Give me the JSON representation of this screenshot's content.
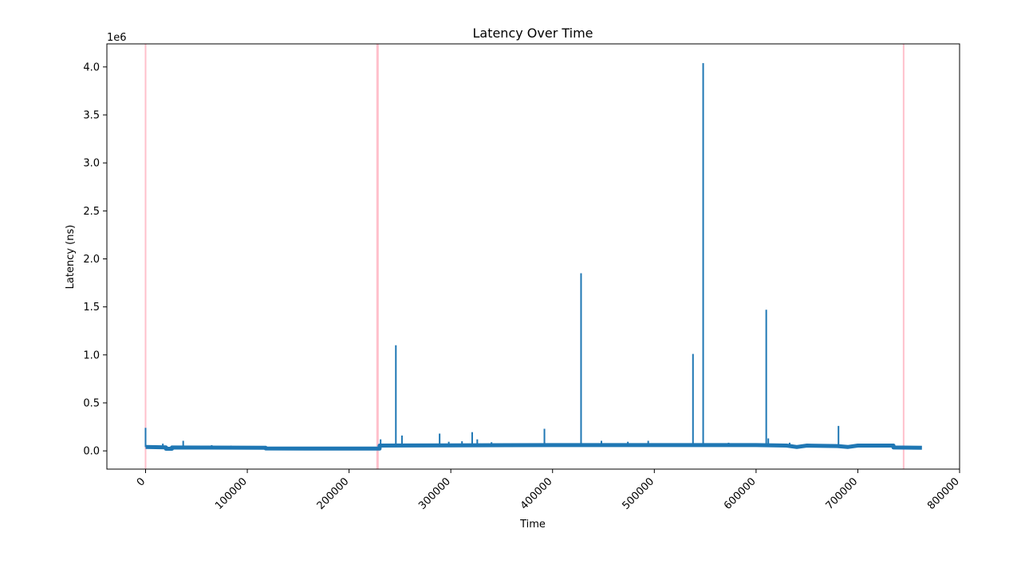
{
  "chart_data": {
    "type": "line",
    "title": "Latency Over Time",
    "xlabel": "Time",
    "ylabel": "Latency (ns)",
    "y_offset_label": "1e6",
    "xlim": [
      -38000,
      800000
    ],
    "ylim": [
      -190000,
      4240000
    ],
    "x_ticks": [
      0,
      100000,
      200000,
      300000,
      400000,
      500000,
      600000,
      700000,
      800000
    ],
    "x_tick_labels": [
      "0",
      "100000",
      "200000",
      "300000",
      "400000",
      "500000",
      "600000",
      "700000",
      "800000"
    ],
    "y_ticks": [
      0,
      500000,
      1000000,
      1500000,
      2000000,
      2500000,
      3000000,
      3500000,
      4000000
    ],
    "y_tick_labels": [
      "0.0",
      "0.5",
      "1.0",
      "1.5",
      "2.0",
      "2.5",
      "3.0",
      "3.5",
      "4.0"
    ],
    "x_tick_rotation": 45,
    "grid": false,
    "legend": "none",
    "colors": {
      "series": "#1f77b4",
      "markers": "#ffc0cb"
    },
    "vertical_markers": [
      0,
      228000,
      745000
    ],
    "series": [
      {
        "baseline": [
          [
            0,
            40000
          ],
          [
            20000,
            36000
          ],
          [
            20000,
            22000
          ],
          [
            26000,
            22000
          ],
          [
            26000,
            35000
          ],
          [
            60000,
            34000
          ],
          [
            118000,
            32000
          ],
          [
            118000,
            25000
          ],
          [
            200000,
            24000
          ],
          [
            230000,
            24000
          ],
          [
            230000,
            55000
          ],
          [
            300000,
            58000
          ],
          [
            400000,
            60000
          ],
          [
            500000,
            60000
          ],
          [
            600000,
            60000
          ],
          [
            630000,
            55000
          ],
          [
            640000,
            40000
          ],
          [
            650000,
            55000
          ],
          [
            680000,
            50000
          ],
          [
            690000,
            40000
          ],
          [
            700000,
            55000
          ],
          [
            735000,
            55000
          ],
          [
            735000,
            35000
          ],
          [
            763000,
            32000
          ]
        ],
        "spikes": [
          [
            0,
            240000
          ],
          [
            17000,
            75000
          ],
          [
            37000,
            105000
          ],
          [
            65000,
            60000
          ],
          [
            84000,
            55000
          ],
          [
            118000,
            50000
          ],
          [
            231000,
            120000
          ],
          [
            246000,
            1100000
          ],
          [
            252000,
            160000
          ],
          [
            289000,
            180000
          ],
          [
            298000,
            95000
          ],
          [
            311000,
            100000
          ],
          [
            321000,
            195000
          ],
          [
            326000,
            120000
          ],
          [
            340000,
            90000
          ],
          [
            392000,
            230000
          ],
          [
            428000,
            1850000
          ],
          [
            448000,
            105000
          ],
          [
            474000,
            95000
          ],
          [
            494000,
            105000
          ],
          [
            538000,
            1010000
          ],
          [
            548000,
            4040000
          ],
          [
            573000,
            85000
          ],
          [
            610000,
            1470000
          ],
          [
            612000,
            130000
          ],
          [
            633000,
            85000
          ],
          [
            681000,
            260000
          ]
        ]
      }
    ]
  }
}
